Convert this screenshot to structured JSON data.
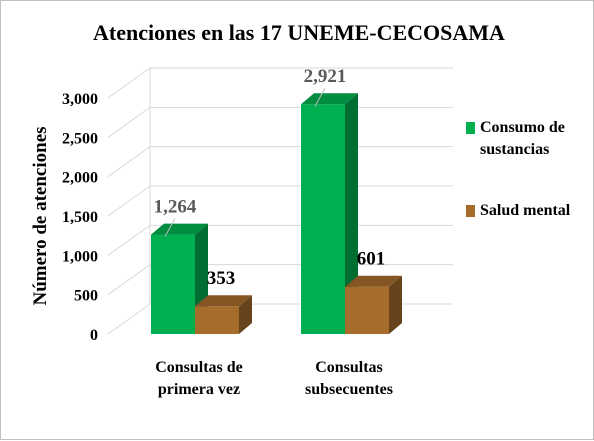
{
  "chart_data": {
    "type": "bar",
    "title": "Atenciones en las 17 UNEME-CECOSAMA",
    "ylabel": "Número de atenciones",
    "xlabel": "",
    "ylim": [
      0,
      3000
    ],
    "yticks": [
      0,
      500,
      1000,
      1500,
      2000,
      2500,
      3000
    ],
    "ytick_labels": [
      "0",
      "500",
      "1,000",
      "1,500",
      "2,000",
      "2,500",
      "3,000"
    ],
    "categories": [
      [
        "Consultas de",
        "primera vez"
      ],
      [
        "Consultas",
        "subsecuentes"
      ]
    ],
    "series": [
      {
        "name": [
          "Consumo de",
          "sustancias"
        ],
        "values": [
          1264,
          2921
        ],
        "labels": [
          "1,264",
          "2,921"
        ],
        "color": "#00b050",
        "label_color": "#595959"
      },
      {
        "name": [
          "Salud mental"
        ],
        "values": [
          353,
          601
        ],
        "labels": [
          "353",
          "601"
        ],
        "color": "#a56c2c",
        "label_color": "#000000"
      }
    ],
    "grid": true,
    "legend": "right",
    "style": "3d-column"
  }
}
